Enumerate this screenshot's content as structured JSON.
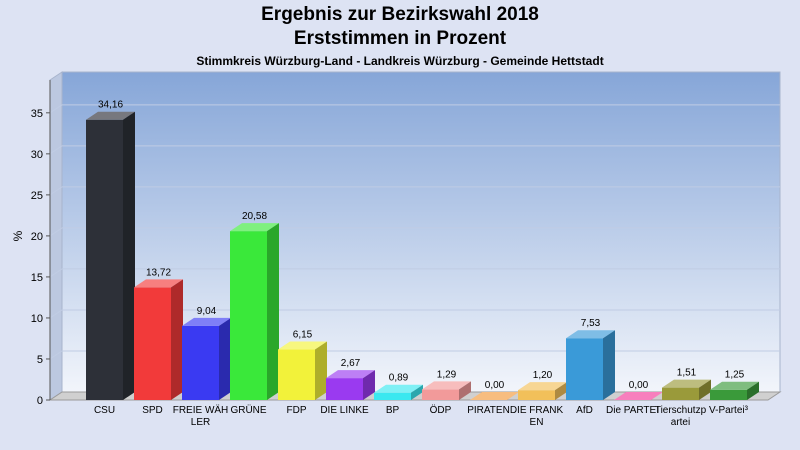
{
  "title": "Ergebnis zur Bezirkswahl 2018",
  "subtitle": "Erststimmen in Prozent",
  "subtitle2": "Stimmkreis Würzburg-Land - Landkreis Würzburg - Gemeinde Hettstadt",
  "chart_data": {
    "type": "bar",
    "ylabel": "%",
    "ylim": [
      0,
      39
    ],
    "yticks": [
      0,
      5,
      10,
      15,
      20,
      25,
      30,
      35
    ],
    "grid": true,
    "categories": [
      "CSU",
      "SPD",
      "FREIE WÄHLER",
      "GRÜNE",
      "FDP",
      "DIE LINKE",
      "BP",
      "ÖDP",
      "PIRATEN",
      "DIE FRANKEN",
      "AfD",
      "Die PARTEI",
      "Tierschutzpartei",
      "V-Partei³"
    ],
    "values": [
      34.16,
      13.72,
      9.04,
      20.58,
      6.15,
      2.67,
      0.89,
      1.29,
      0.0,
      1.2,
      7.53,
      0.0,
      1.51,
      1.25
    ],
    "value_labels": [
      "34,16",
      "13,72",
      "9,04",
      "20,58",
      "6,15",
      "2,67",
      "0,89",
      "1,29",
      "0,00",
      "1,20",
      "7,53",
      "0,00",
      "1,51",
      "1,25"
    ],
    "colors": [
      "#2d3038",
      "#f23a3a",
      "#3a3af2",
      "#3ae83a",
      "#f2f23a",
      "#9a3af0",
      "#3ae8f0",
      "#f29a9a",
      "#f29a3a",
      "#f2c05a",
      "#3a9ad8",
      "#f23a9a",
      "#9a9a3a",
      "#3a9a3a"
    ]
  }
}
